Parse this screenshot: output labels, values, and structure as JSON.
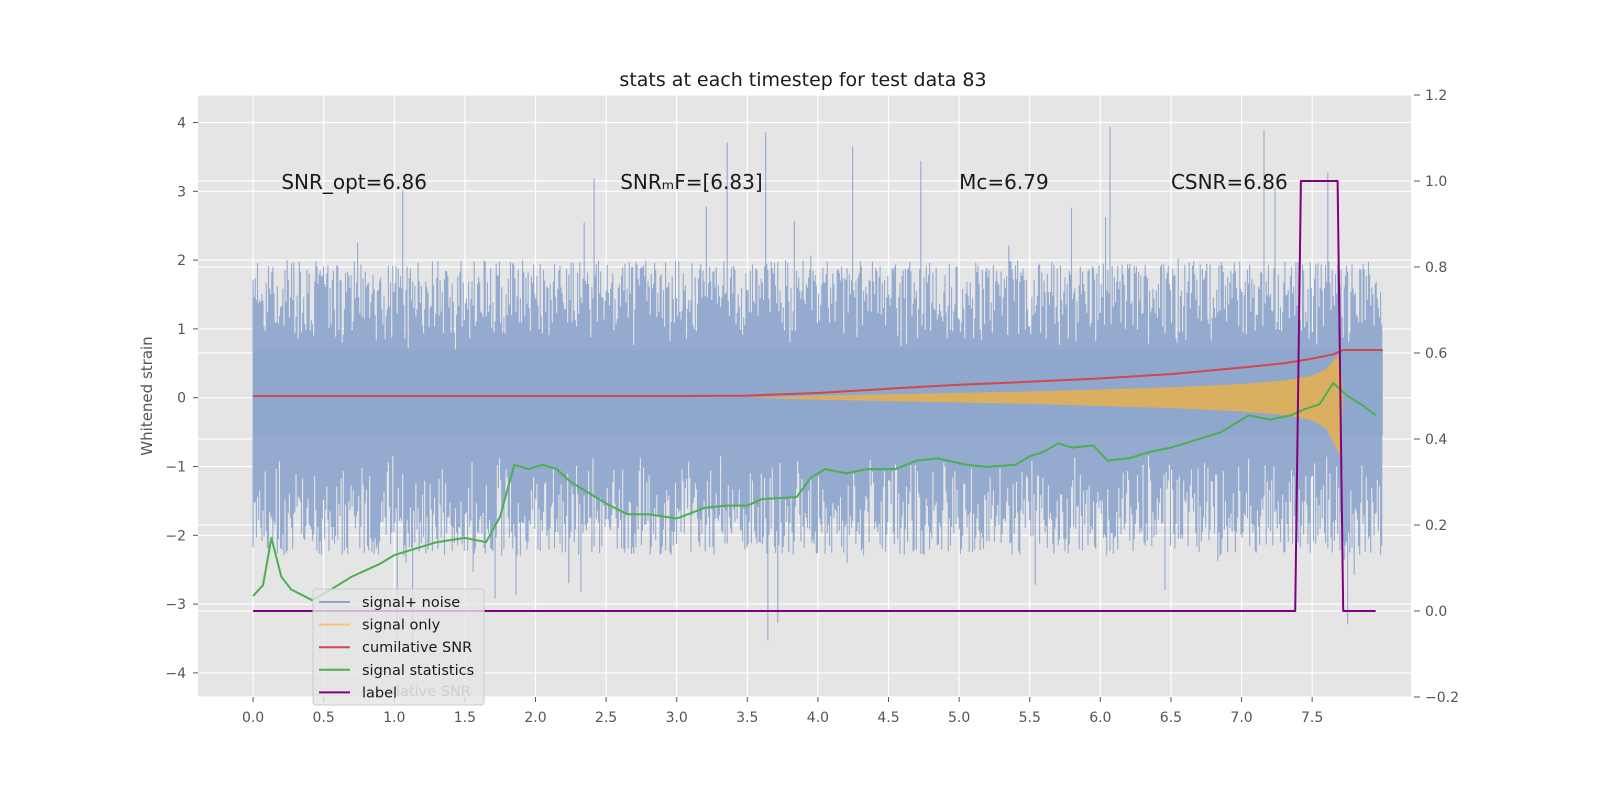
{
  "chart_data": {
    "type": "line",
    "title": "stats at each timestep for test data 83",
    "ylabel": "Whitened strain",
    "y2label": "",
    "xlabel": "",
    "xlim": [
      -0.39,
      8.2
    ],
    "ylim": [
      -4.35,
      4.4
    ],
    "y2lim": [
      -0.2,
      1.2
    ],
    "grid": true,
    "x_ticks": [
      0.0,
      0.5,
      1.0,
      1.5,
      2.0,
      2.5,
      3.0,
      3.5,
      4.0,
      4.5,
      5.0,
      5.5,
      6.0,
      6.5,
      7.0,
      7.5
    ],
    "x_tick_labels": [
      "0.0",
      "0.5",
      "1.0",
      "1.5",
      "2.0",
      "2.5",
      "3.0",
      "3.5",
      "4.0",
      "4.5",
      "5.0",
      "5.5",
      "6.0",
      "6.5",
      "7.0",
      "7.5"
    ],
    "y_ticks": [
      -4,
      -3,
      -2,
      -1,
      0,
      1,
      2,
      3,
      4
    ],
    "y_tick_labels": [
      "−4",
      "−3",
      "−2",
      "−1",
      "0",
      "1",
      "2",
      "3",
      "4"
    ],
    "y2_ticks": [
      -0.2,
      0.0,
      0.2,
      0.4,
      0.6,
      0.8,
      1.0,
      1.2
    ],
    "y2_tick_labels": [
      "−0.2",
      "0.0",
      "0.2",
      "0.4",
      "0.6",
      "0.8",
      "1.0",
      "1.2"
    ],
    "annotations": [
      {
        "name": "snr-opt-annotation",
        "text": "SNR_opt=6.86",
        "x": 0.2,
        "y": 3.15
      },
      {
        "name": "snr-mf-annotation",
        "text": "SNRₘF=[6.83]",
        "x": 2.6,
        "y": 3.15
      },
      {
        "name": "mc-annotation",
        "text": "Mᴄ=6.79",
        "x": 5.0,
        "y": 3.15
      },
      {
        "name": "csnr-annotation",
        "text": "CSNR=6.86",
        "x": 6.5,
        "y": 3.15
      }
    ],
    "legend": {
      "location": "lower-left",
      "entries": [
        {
          "label": "signal+ noise",
          "color": "#8fa6cc"
        },
        {
          "label": "signal only",
          "color": "#f5c76a"
        },
        {
          "label": "cumilative SNR",
          "color": "#d04848"
        },
        {
          "label": "signal statistics",
          "color": "#4caf50"
        },
        {
          "label": "label",
          "color": "#800080"
        }
      ],
      "ghost_text": "lative SNR"
    },
    "series": [
      {
        "name": "signal+ noise",
        "axis": "left",
        "style": "noise-band",
        "color": "#8fa6cc",
        "x_range": [
          0.0,
          8.0
        ],
        "core_range": [
          -0.55,
          0.7
        ],
        "typical_upper": 2.0,
        "typical_lower": -2.3,
        "max": 4.02,
        "min": -3.85
      },
      {
        "name": "signal only",
        "axis": "left",
        "style": "chirp-envelope",
        "color": "#e8b14c",
        "x": [
          3.5,
          4.0,
          4.5,
          5.0,
          5.5,
          6.0,
          6.5,
          7.0,
          7.3,
          7.5,
          7.6,
          7.7,
          7.72
        ],
        "upper": [
          0.0,
          0.03,
          0.05,
          0.07,
          0.09,
          0.12,
          0.15,
          0.2,
          0.25,
          0.32,
          0.42,
          0.65,
          0.0
        ],
        "lower": [
          0.0,
          -0.03,
          -0.05,
          -0.07,
          -0.09,
          -0.12,
          -0.15,
          -0.2,
          -0.25,
          -0.33,
          -0.45,
          -0.85,
          0.0
        ]
      },
      {
        "name": "cumilative SNR",
        "axis": "right",
        "color": "#d04848",
        "x": [
          0.0,
          3.0,
          3.5,
          4.0,
          4.5,
          5.0,
          5.5,
          6.0,
          6.5,
          7.0,
          7.3,
          7.5,
          7.65,
          7.72,
          8.0
        ],
        "y": [
          0.5,
          0.5,
          0.501,
          0.507,
          0.517,
          0.526,
          0.533,
          0.541,
          0.551,
          0.566,
          0.576,
          0.587,
          0.597,
          0.607,
          0.607
        ]
      },
      {
        "name": "signal statistics",
        "axis": "right",
        "color": "#4caf50",
        "x": [
          0.0,
          0.07,
          0.13,
          0.2,
          0.27,
          0.33,
          0.42,
          0.5,
          0.7,
          0.9,
          1.0,
          1.1,
          1.3,
          1.5,
          1.65,
          1.75,
          1.85,
          1.95,
          2.05,
          2.15,
          2.25,
          2.35,
          2.5,
          2.65,
          2.8,
          3.0,
          3.2,
          3.35,
          3.5,
          3.6,
          3.85,
          3.95,
          4.05,
          4.2,
          4.35,
          4.55,
          4.7,
          4.85,
          5.05,
          5.2,
          5.4,
          5.5,
          5.6,
          5.7,
          5.8,
          5.95,
          6.05,
          6.2,
          6.35,
          6.5,
          6.6,
          6.75,
          6.85,
          7.05,
          7.2,
          7.35,
          7.45,
          7.55,
          7.65,
          7.75,
          7.85,
          7.95
        ],
        "y": [
          0.035,
          0.06,
          0.17,
          0.08,
          0.05,
          0.04,
          0.025,
          0.04,
          0.08,
          0.11,
          0.13,
          0.14,
          0.16,
          0.17,
          0.16,
          0.22,
          0.34,
          0.33,
          0.34,
          0.33,
          0.3,
          0.28,
          0.25,
          0.225,
          0.225,
          0.215,
          0.24,
          0.245,
          0.245,
          0.26,
          0.265,
          0.31,
          0.33,
          0.32,
          0.33,
          0.33,
          0.35,
          0.355,
          0.34,
          0.335,
          0.34,
          0.36,
          0.37,
          0.39,
          0.38,
          0.385,
          0.35,
          0.355,
          0.37,
          0.38,
          0.39,
          0.405,
          0.415,
          0.455,
          0.445,
          0.455,
          0.47,
          0.48,
          0.53,
          0.5,
          0.48,
          0.455
        ]
      },
      {
        "name": "label",
        "axis": "right",
        "color": "#800080",
        "x": [
          0.0,
          7.38,
          7.42,
          7.68,
          7.72,
          7.95
        ],
        "y": [
          0.0,
          0.0,
          1.0,
          1.0,
          0.0,
          0.0
        ]
      }
    ]
  }
}
